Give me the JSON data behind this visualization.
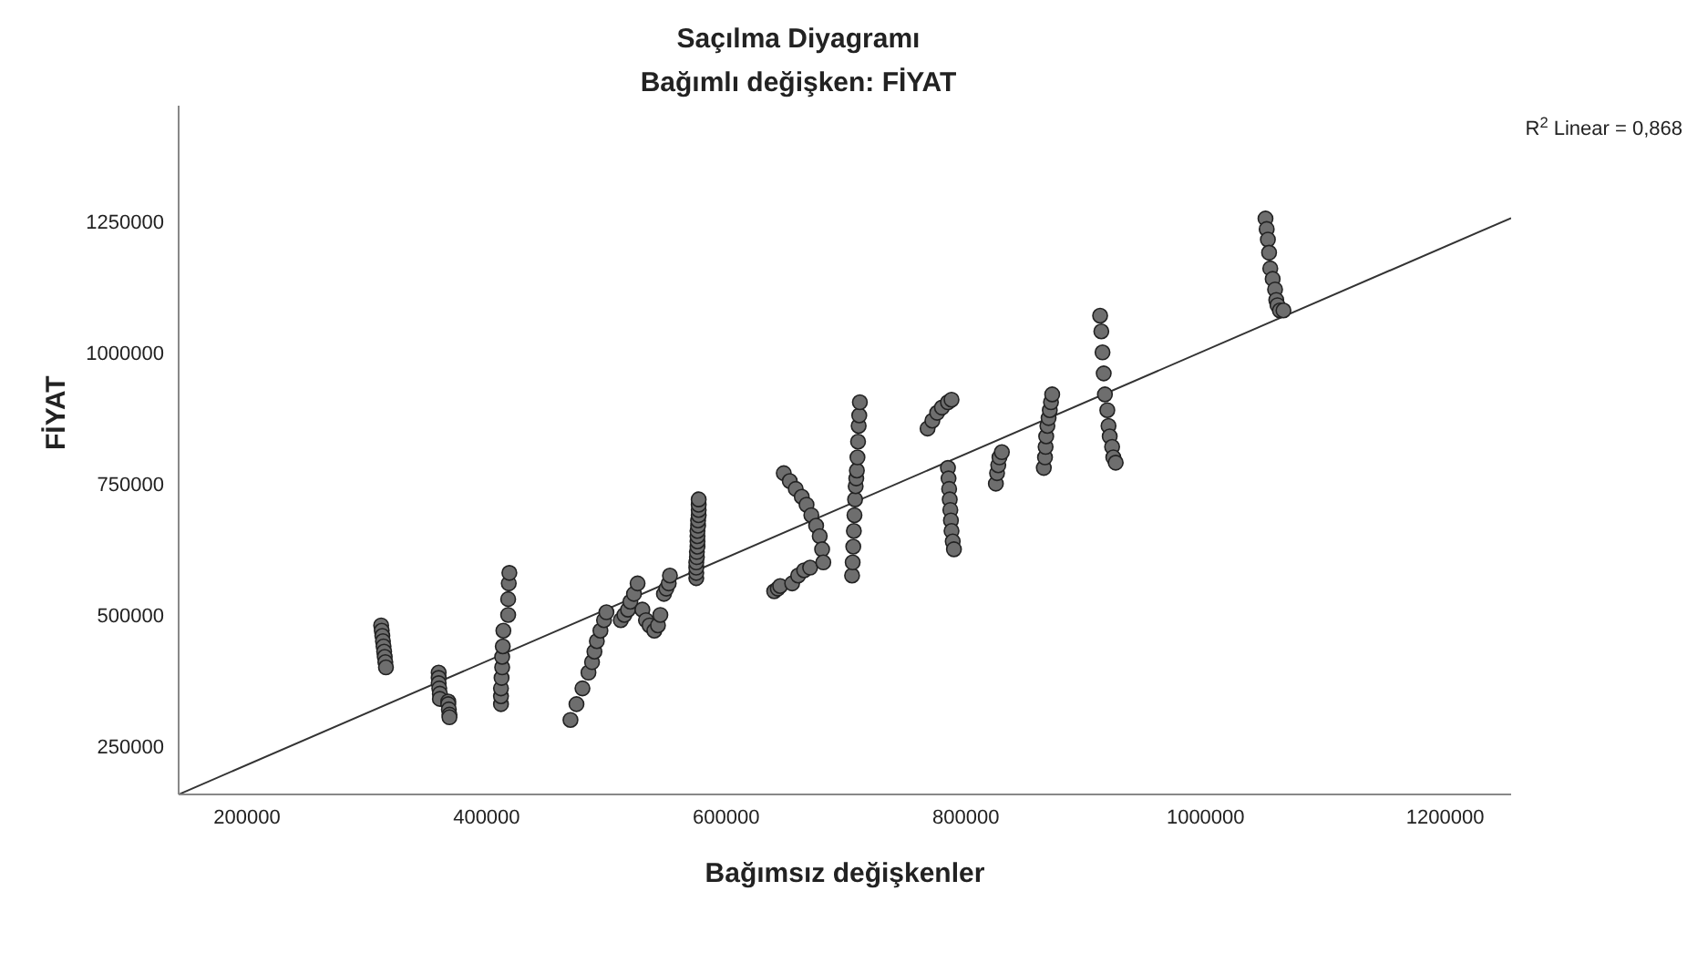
{
  "chart_data": {
    "type": "scatter",
    "title": "Saçılma Diyagramı",
    "subtitle": "Bağımlı değişken: FİYAT",
    "xlabel": "Bağımsız değişkenler",
    "ylabel": "FİYAT",
    "annotations": [
      "R$^{2}$ Linear = 0,868"
    ],
    "xlim": [
      143000,
      1255000
    ],
    "ylim": [
      158000,
      1470000
    ],
    "xticks": [
      200000,
      400000,
      600000,
      800000,
      1000000,
      1200000
    ],
    "yticks": [
      250000,
      500000,
      750000,
      1000000,
      1250000
    ],
    "series": [
      {
        "marker": "circle",
        "color": "#6e6e6e",
        "x": [
          312000,
          312500,
          313000,
          313500,
          314000,
          314500,
          315000,
          315500,
          316000,
          360000,
          360000,
          360000,
          360500,
          361000,
          361000,
          368000,
          368000,
          368500,
          369000,
          369000,
          412000,
          412000,
          412000,
          412500,
          413000,
          413000,
          413500,
          414000,
          418000,
          418000,
          418500,
          419000,
          470000,
          475000,
          480000,
          485000,
          488000,
          490000,
          492000,
          495000,
          498000,
          500000,
          512000,
          515000,
          518000,
          520000,
          523000,
          526000,
          530000,
          533000,
          536000,
          540000,
          543000,
          545000,
          548000,
          550000,
          552000,
          553000,
          575000,
          575000,
          575000,
          575000,
          575500,
          575500,
          576000,
          576000,
          576000,
          576000,
          576500,
          576500,
          577000,
          577000,
          577000,
          577000,
          640000,
          643000,
          645000,
          655000,
          660000,
          665000,
          670000,
          648000,
          653000,
          658000,
          663000,
          667000,
          671000,
          675000,
          678000,
          680000,
          681000,
          705000,
          705500,
          706000,
          706500,
          707000,
          707500,
          708000,
          708500,
          709000,
          709500,
          710000,
          710500,
          711000,
          711500,
          768000,
          772000,
          776000,
          780000,
          785000,
          788000,
          785000,
          785500,
          786000,
          786500,
          787000,
          787500,
          788000,
          789000,
          790000,
          825000,
          826000,
          827000,
          828000,
          830000,
          865000,
          866000,
          866500,
          867000,
          868000,
          869000,
          870000,
          871000,
          872000,
          912000,
          913000,
          914000,
          915000,
          916000,
          918000,
          919000,
          920000,
          922000,
          923000,
          925000,
          1050000,
          1051000,
          1052000,
          1053000,
          1054000,
          1056000,
          1058000,
          1059000,
          1060000,
          1062000,
          1065000
        ],
        "values": [
          480000,
          470000,
          460000,
          450000,
          440000,
          430000,
          420000,
          410000,
          400000,
          390000,
          380000,
          370000,
          360000,
          350000,
          340000,
          335000,
          330000,
          320000,
          310000,
          305000,
          330000,
          345000,
          360000,
          380000,
          400000,
          420000,
          440000,
          470000,
          500000,
          530000,
          560000,
          580000,
          300000,
          330000,
          360000,
          390000,
          410000,
          430000,
          450000,
          470000,
          490000,
          505000,
          490000,
          500000,
          510000,
          525000,
          540000,
          560000,
          510000,
          490000,
          480000,
          470000,
          480000,
          500000,
          540000,
          550000,
          560000,
          575000,
          570000,
          580000,
          590000,
          600000,
          610000,
          620000,
          630000,
          640000,
          650000,
          660000,
          670000,
          680000,
          690000,
          700000,
          710000,
          720000,
          545000,
          550000,
          555000,
          560000,
          575000,
          585000,
          590000,
          770000,
          755000,
          740000,
          725000,
          710000,
          690000,
          670000,
          650000,
          625000,
          600000,
          575000,
          600000,
          630000,
          660000,
          690000,
          720000,
          745000,
          760000,
          775000,
          800000,
          830000,
          860000,
          880000,
          905000,
          855000,
          870000,
          885000,
          895000,
          905000,
          910000,
          780000,
          760000,
          740000,
          720000,
          700000,
          680000,
          660000,
          640000,
          625000,
          750000,
          770000,
          785000,
          800000,
          810000,
          780000,
          800000,
          820000,
          840000,
          860000,
          875000,
          890000,
          905000,
          920000,
          1070000,
          1040000,
          1000000,
          960000,
          920000,
          890000,
          860000,
          840000,
          820000,
          800000,
          790000,
          1255000,
          1235000,
          1215000,
          1190000,
          1160000,
          1140000,
          1120000,
          1100000,
          1090000,
          1080000,
          1080000
        ]
      },
      {
        "type": "line",
        "marker": "none",
        "line_style": "solid",
        "color": "#333333",
        "x": [
          143000,
          1255000
        ],
        "values": [
          158000,
          1256000
        ]
      }
    ]
  }
}
